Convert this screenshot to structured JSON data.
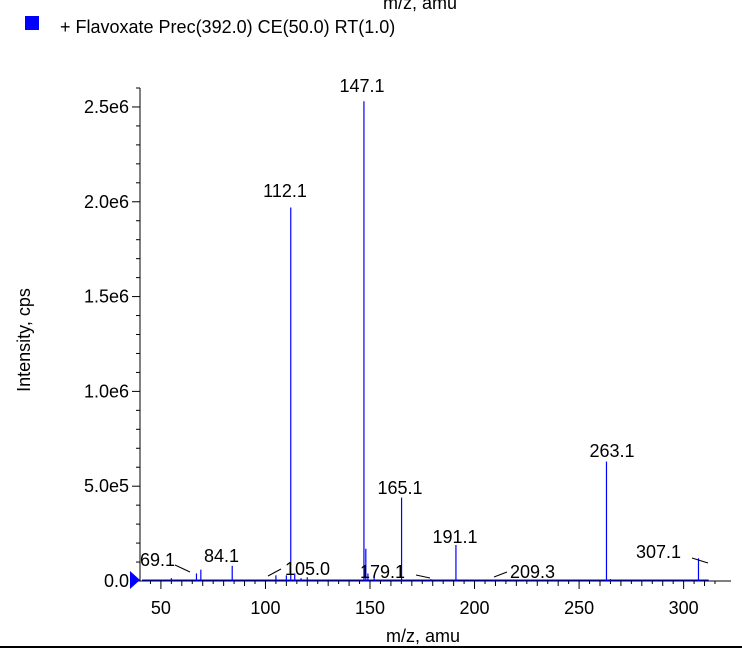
{
  "chart_data": {
    "type": "line",
    "subtype": "mass-spectrum-stick",
    "top_cut_label": "m/z, amu",
    "legend": {
      "label": "+ Flavoxate Prec(392.0) CE(50.0) RT(1.0)",
      "color": "#0000ff"
    },
    "xlabel": "m/z, amu",
    "ylabel": "Intensity, cps",
    "xlim": [
      40,
      315
    ],
    "ylim": [
      0,
      2600000
    ],
    "x_ticks": [
      50,
      100,
      150,
      200,
      250,
      300
    ],
    "x_tick_labels": [
      "50",
      "100",
      "150",
      "200",
      "250",
      "300"
    ],
    "y_ticks": [
      0,
      500000,
      1000000,
      1500000,
      2000000,
      2500000
    ],
    "y_tick_labels": [
      "0.0",
      "5.0e5",
      "1.0e6",
      "1.5e6",
      "2.0e6",
      "2.5e6"
    ],
    "series_color": "#0000ff",
    "peaks": [
      {
        "x": 55.0,
        "y": 15000
      },
      {
        "x": 67.0,
        "y": 40000
      },
      {
        "x": 69.1,
        "y": 60000
      },
      {
        "x": 84.1,
        "y": 80000
      },
      {
        "x": 105.0,
        "y": 30000
      },
      {
        "x": 110.0,
        "y": 30000
      },
      {
        "x": 112.1,
        "y": 1970000
      },
      {
        "x": 114.0,
        "y": 40000
      },
      {
        "x": 117.0,
        "y": 15000
      },
      {
        "x": 120.0,
        "y": 20000
      },
      {
        "x": 147.1,
        "y": 2530000
      },
      {
        "x": 148.0,
        "y": 170000
      },
      {
        "x": 149.0,
        "y": 40000
      },
      {
        "x": 152.0,
        "y": 15000
      },
      {
        "x": 165.1,
        "y": 440000
      },
      {
        "x": 179.1,
        "y": 10000
      },
      {
        "x": 191.1,
        "y": 190000
      },
      {
        "x": 209.3,
        "y": 5000
      },
      {
        "x": 263.1,
        "y": 630000
      },
      {
        "x": 265.0,
        "y": 10000
      },
      {
        "x": 307.1,
        "y": 120000
      }
    ],
    "peak_labels": [
      "69.1",
      "84.1",
      "105.0",
      "112.1",
      "147.1",
      "165.1",
      "179.1",
      "191.1",
      "209.3",
      "263.1",
      "307.1"
    ]
  }
}
